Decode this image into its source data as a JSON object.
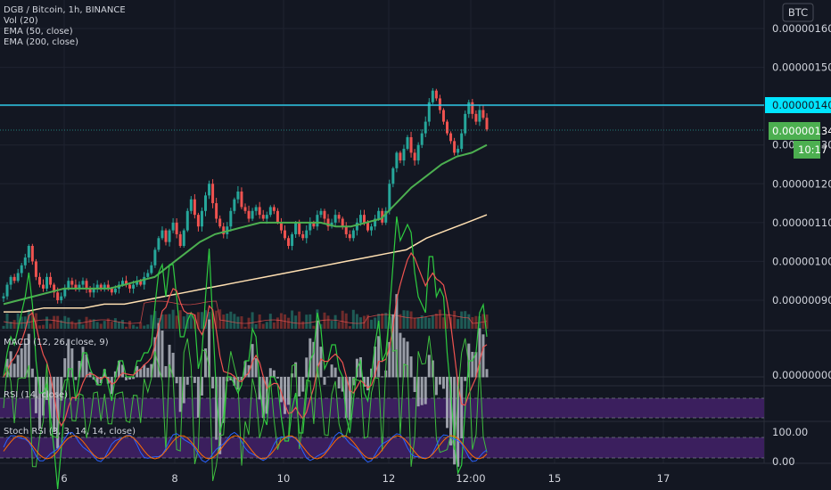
{
  "header": {
    "title": "DGB / Bitcoin, 1h, BINANCE",
    "currency": "BTC",
    "vol_label": "Vol (20)",
    "ema50_label": "EMA (50, close)",
    "ema200_label": "EMA (200, close)"
  },
  "panes": {
    "macd_label": "MACD (12, 26, close, 9)",
    "rsi_label": "RSI (14, close)",
    "stoch_label": "Stoch RSI (3, 3, 14, 14, close)"
  },
  "price_axis": {
    "ticks": [
      "0.00000160",
      "0.00000150",
      "0.00000140",
      "0.00000130",
      "0.00000120",
      "0.00000110",
      "0.00000100",
      "0.00000090"
    ],
    "hline_label": "0.00000140",
    "last_price_label": "0.00000134",
    "countdown": "10:17"
  },
  "macd_axis": {
    "ticks": [
      "0.00000000"
    ]
  },
  "stoch_axis": {
    "ticks": [
      "100.00",
      "0.00"
    ]
  },
  "time_axis": {
    "ticks": [
      "6",
      "8",
      "10",
      "12",
      "12:00",
      "15",
      "17"
    ]
  },
  "colors": {
    "background": "#131722",
    "up": "#26a69a",
    "down": "#ef5350",
    "ema50": "#4caf50",
    "ema200": "#ffe0b2",
    "hline": "#2ec8e6",
    "macd": "#2ecc40",
    "signal": "#ef5350",
    "band": "#4a1e7a"
  },
  "chart_data": {
    "type": "candlestick",
    "symbol": "DGB / Bitcoin",
    "interval": "1h",
    "exchange": "BINANCE",
    "x_ticks": [
      "6",
      "8",
      "10",
      "12",
      "12:00",
      "15",
      "17"
    ],
    "y_ticks": [
      1.6e-06,
      1.5e-06,
      1.4e-06,
      1.3e-06,
      1.2e-06,
      1.1e-06,
      1e-06,
      9e-07
    ],
    "horizontal_line": 1.4e-06,
    "last_price": 1.34e-06,
    "ohlc_close_path": [
      9.1e-07,
      9.4e-07,
      9.6e-07,
      9.5e-07,
      9.7e-07,
      9.9e-07,
      1.01e-06,
      1.04e-06,
      1e-06,
      9.6e-07,
      9.4e-07,
      9.3e-07,
      9.6e-07,
      9.4e-07,
      9.2e-07,
      9e-07,
      9.1e-07,
      9.3e-07,
      9.5e-07,
      9.4e-07,
      9.3e-07,
      9.4e-07,
      9.5e-07,
      9.3e-07,
      9.2e-07,
      9.3e-07,
      9.4e-07,
      9.3e-07,
      9.4e-07,
      9.3e-07,
      9.2e-07,
      9.3e-07,
      9.4e-07,
      9.5e-07,
      9.4e-07,
      9.3e-07,
      9.4e-07,
      9.5e-07,
      9.4e-07,
      9.6e-07,
      9.7e-07,
      9.9e-07,
      1.03e-06,
      1.06e-06,
      1.08e-06,
      1.05e-06,
      1.08e-06,
      1.1e-06,
      1.07e-06,
      1.04e-06,
      1.08e-06,
      1.13e-06,
      1.16e-06,
      1.12e-06,
      1.09e-06,
      1.13e-06,
      1.17e-06,
      1.2e-06,
      1.15e-06,
      1.11e-06,
      1.09e-06,
      1.07e-06,
      1.09e-06,
      1.13e-06,
      1.16e-06,
      1.18e-06,
      1.14e-06,
      1.13e-06,
      1.11e-06,
      1.13e-06,
      1.14e-06,
      1.12e-06,
      1.11e-06,
      1.12e-06,
      1.14e-06,
      1.13e-06,
      1.1e-06,
      1.08e-06,
      1.06e-06,
      1.04e-06,
      1.07e-06,
      1.1e-06,
      1.07e-06,
      1.06e-06,
      1.08e-06,
      1.1e-06,
      1.09e-06,
      1.12e-06,
      1.13e-06,
      1.11e-06,
      1.09e-06,
      1.1e-06,
      1.12e-06,
      1.11e-06,
      1.09e-06,
      1.07e-06,
      1.06e-06,
      1.08e-06,
      1.1e-06,
      1.12e-06,
      1.1e-06,
      1.08e-06,
      1.09e-06,
      1.11e-06,
      1.13e-06,
      1.1e-06,
      1.13e-06,
      1.2e-06,
      1.24e-06,
      1.28e-06,
      1.26e-06,
      1.29e-06,
      1.32e-06,
      1.28e-06,
      1.26e-06,
      1.3e-06,
      1.33e-06,
      1.36e-06,
      1.41e-06,
      1.44e-06,
      1.42e-06,
      1.39e-06,
      1.36e-06,
      1.33e-06,
      1.31e-06,
      1.28e-06,
      1.29e-06,
      1.33e-06,
      1.38e-06,
      1.41e-06,
      1.38e-06,
      1.36e-06,
      1.39e-06,
      1.37e-06,
      1.34e-06
    ],
    "ema50_path": [
      8.9e-07,
      9e-07,
      9.1e-07,
      9.2e-07,
      9.3e-07,
      9.3e-07,
      9.3e-07,
      9.3e-07,
      9.4e-07,
      9.5e-07,
      9.6e-07,
      9.9e-07,
      1.02e-06,
      1.05e-06,
      1.07e-06,
      1.08e-06,
      1.09e-06,
      1.1e-06,
      1.1e-06,
      1.1e-06,
      1.1e-06,
      1.1e-06,
      1.09e-06,
      1.09e-06,
      1.1e-06,
      1.11e-06,
      1.15e-06,
      1.19e-06,
      1.22e-06,
      1.25e-06,
      1.27e-06,
      1.28e-06,
      1.3e-06
    ],
    "ema200_path": [
      8.7e-07,
      8.7e-07,
      8.8e-07,
      8.8e-07,
      8.8e-07,
      8.9e-07,
      8.9e-07,
      9e-07,
      9.1e-07,
      9.2e-07,
      9.3e-07,
      9.4e-07,
      9.5e-07,
      9.6e-07,
      9.7e-07,
      9.8e-07,
      9.9e-07,
      1e-06,
      1.01e-06,
      1.02e-06,
      1.03e-06,
      1.06e-06,
      1.08e-06,
      1.1e-06,
      1.12e-06
    ],
    "macd_axis": [
      0
    ],
    "stoch_axis": [
      100,
      0
    ]
  }
}
